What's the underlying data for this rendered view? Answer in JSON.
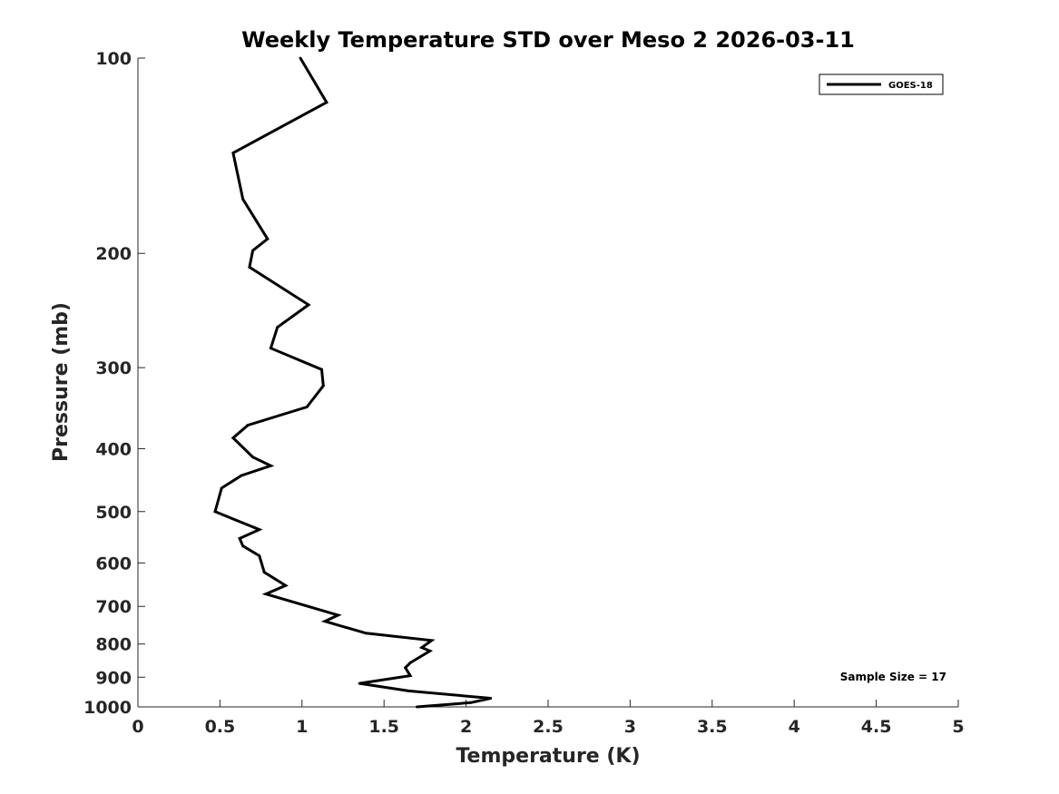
{
  "chart_data": {
    "type": "line",
    "title": "Weekly Temperature STD over Meso 2 2026-03-11",
    "xlabel": "Temperature (K)",
    "ylabel": "Pressure (mb)",
    "xlim": [
      0,
      5
    ],
    "ylim": [
      100,
      1000
    ],
    "yscale": "log",
    "y_reversed": true,
    "grid": false,
    "xticks": [
      0,
      0.5,
      1,
      1.5,
      2,
      2.5,
      3,
      3.5,
      4,
      4.5,
      5
    ],
    "xtick_labels": [
      "0",
      "0.5",
      "1",
      "1.5",
      "2",
      "2.5",
      "3",
      "3.5",
      "4",
      "4.5",
      "5"
    ],
    "yticks": [
      100,
      200,
      300,
      400,
      500,
      600,
      700,
      800,
      900,
      1000
    ],
    "ytick_labels": [
      "100",
      "200",
      "300",
      "400",
      "500",
      "600",
      "700",
      "800",
      "900",
      "1000"
    ],
    "legend": {
      "position": "top-right",
      "entries": [
        "GOES-18"
      ]
    },
    "annotation": "Sample Size = 17",
    "series": [
      {
        "name": "GOES-18",
        "color": "#000000",
        "x": [
          0.99,
          1.15,
          0.58,
          0.64,
          0.79,
          0.7,
          0.68,
          1.04,
          0.85,
          0.81,
          1.12,
          1.13,
          1.03,
          0.67,
          0.58,
          0.7,
          0.81,
          0.63,
          0.51,
          0.48,
          0.47,
          0.74,
          0.62,
          0.64,
          0.74,
          0.77,
          0.9,
          0.78,
          1.22,
          1.14,
          1.39,
          1.79,
          1.73,
          1.78,
          1.66,
          1.63,
          1.66,
          1.35,
          1.65,
          2.15,
          2.03,
          1.7
        ],
        "y": [
          100,
          117,
          140,
          165,
          190,
          198,
          210,
          240,
          260,
          280,
          302,
          320,
          345,
          368,
          385,
          412,
          425,
          440,
          460,
          490,
          500,
          533,
          550,
          565,
          585,
          620,
          650,
          670,
          722,
          738,
          770,
          790,
          810,
          820,
          855,
          870,
          895,
          920,
          945,
          970,
          985,
          1000
        ]
      }
    ]
  }
}
